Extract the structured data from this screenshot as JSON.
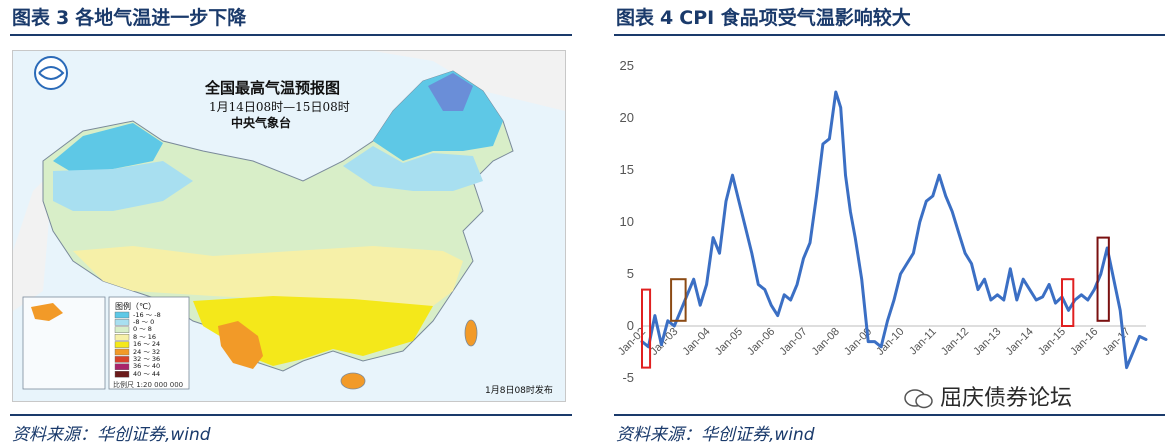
{
  "left_panel": {
    "fig_label": "图表",
    "fig_num": "3",
    "fig_title": "各地气温进一步下降",
    "source": "资料来源：华创证券,wind",
    "map": {
      "title": "全国最高气温预报图",
      "subtitle": "1月14日08时—15日08时",
      "agency": "中央气象台",
      "legend_title": "图例（℃）",
      "legend_items": [
        {
          "label": "-16 ～ -8",
          "color": "#5ec8e6"
        },
        {
          "label": "-8 ～ 0",
          "color": "#a8dff0"
        },
        {
          "label": "0 ～ 8",
          "color": "#d8eec8"
        },
        {
          "label": "8 ～ 16",
          "color": "#f6f0a8"
        },
        {
          "label": "16 ～ 24",
          "color": "#f4e81a"
        },
        {
          "label": "24 ～ 32",
          "color": "#f29a28"
        },
        {
          "label": "32 ～ 36",
          "color": "#d8422a"
        },
        {
          "label": "36 ～ 40",
          "color": "#a8246a"
        },
        {
          "label": "40 ～ 44",
          "color": "#6a1a1a"
        }
      ],
      "scale_label": "比例尺  1:20 000 000",
      "release_note": "1月8日08时发布"
    }
  },
  "right_panel": {
    "fig_label": "图表",
    "fig_num": "4",
    "fig_title": "CPI 食品项受气温影响较大",
    "source": "资料来源：华创证券,wind",
    "watermark": "屈庆债券论坛"
  },
  "chart_data": {
    "type": "line",
    "title": "",
    "xlabel": "",
    "ylabel": "",
    "ylim": [
      -5,
      25
    ],
    "yticks": [
      25,
      20,
      15,
      10,
      5,
      0,
      -5
    ],
    "xtick_labels": [
      "Jan-02",
      "Jan-03",
      "Jan-04",
      "Jan-05",
      "Jan-06",
      "Jan-07",
      "Jan-08",
      "Jan-09",
      "Jan-10",
      "Jan-11",
      "Jan-12",
      "Jan-13",
      "Jan-14",
      "Jan-15",
      "Jan-16",
      "Jan-17"
    ],
    "x_start": 2002.0,
    "x_end": 2017.6,
    "series_color": "#3b6fc4",
    "series": [
      {
        "name": "",
        "x": [
          2002.0,
          2002.2,
          2002.4,
          2002.6,
          2002.8,
          2003.0,
          2003.2,
          2003.4,
          2003.6,
          2003.8,
          2004.0,
          2004.2,
          2004.4,
          2004.6,
          2004.8,
          2005.0,
          2005.2,
          2005.4,
          2005.6,
          2005.8,
          2006.0,
          2006.2,
          2006.4,
          2006.6,
          2006.8,
          2007.0,
          2007.2,
          2007.4,
          2007.6,
          2007.8,
          2008.0,
          2008.15,
          2008.3,
          2008.45,
          2008.6,
          2008.8,
          2009.0,
          2009.2,
          2009.4,
          2009.6,
          2009.8,
          2010.0,
          2010.2,
          2010.4,
          2010.6,
          2010.8,
          2011.0,
          2011.2,
          2011.4,
          2011.6,
          2011.8,
          2012.0,
          2012.2,
          2012.4,
          2012.6,
          2012.8,
          2013.0,
          2013.2,
          2013.4,
          2013.6,
          2013.8,
          2014.0,
          2014.2,
          2014.4,
          2014.6,
          2014.8,
          2015.0,
          2015.2,
          2015.4,
          2015.6,
          2015.8,
          2016.0,
          2016.2,
          2016.4,
          2016.6,
          2016.8,
          2017.0,
          2017.2,
          2017.4,
          2017.6
        ],
        "y": [
          -1.5,
          -2.0,
          1.0,
          -1.8,
          0.5,
          0.0,
          1.5,
          3.0,
          4.5,
          2.0,
          4.0,
          8.5,
          7.0,
          12.0,
          14.5,
          12.0,
          9.5,
          7.0,
          4.0,
          3.5,
          2.0,
          1.0,
          3.0,
          2.5,
          4.0,
          6.5,
          8.0,
          12.5,
          17.5,
          18.0,
          22.5,
          21.0,
          14.5,
          11.0,
          8.5,
          4.5,
          -1.5,
          -1.5,
          -2.0,
          0.5,
          2.5,
          5.0,
          6.0,
          7.0,
          10.0,
          12.0,
          12.5,
          14.5,
          12.5,
          11.0,
          9.0,
          7.0,
          6.0,
          3.5,
          4.5,
          2.5,
          3.0,
          2.5,
          5.5,
          2.5,
          4.5,
          3.5,
          2.5,
          2.8,
          4.0,
          2.2,
          2.8,
          1.5,
          2.5,
          3.0,
          2.5,
          3.5,
          5.0,
          7.5,
          4.5,
          1.5,
          -4.0,
          -2.5,
          -1.0,
          -1.3
        ]
      }
    ],
    "highlight_boxes": [
      {
        "x0": 2002.0,
        "x1": 2002.25,
        "y0": -4.0,
        "y1": 3.5,
        "color": "#e02020"
      },
      {
        "x0": 2002.9,
        "x1": 2003.35,
        "y0": 0.5,
        "y1": 4.5,
        "color": "#8b4a14"
      },
      {
        "x0": 2015.0,
        "x1": 2015.35,
        "y0": 0.0,
        "y1": 4.5,
        "color": "#e02020"
      },
      {
        "x0": 2016.1,
        "x1": 2016.45,
        "y0": 0.5,
        "y1": 8.5,
        "color": "#7a1010"
      }
    ]
  }
}
